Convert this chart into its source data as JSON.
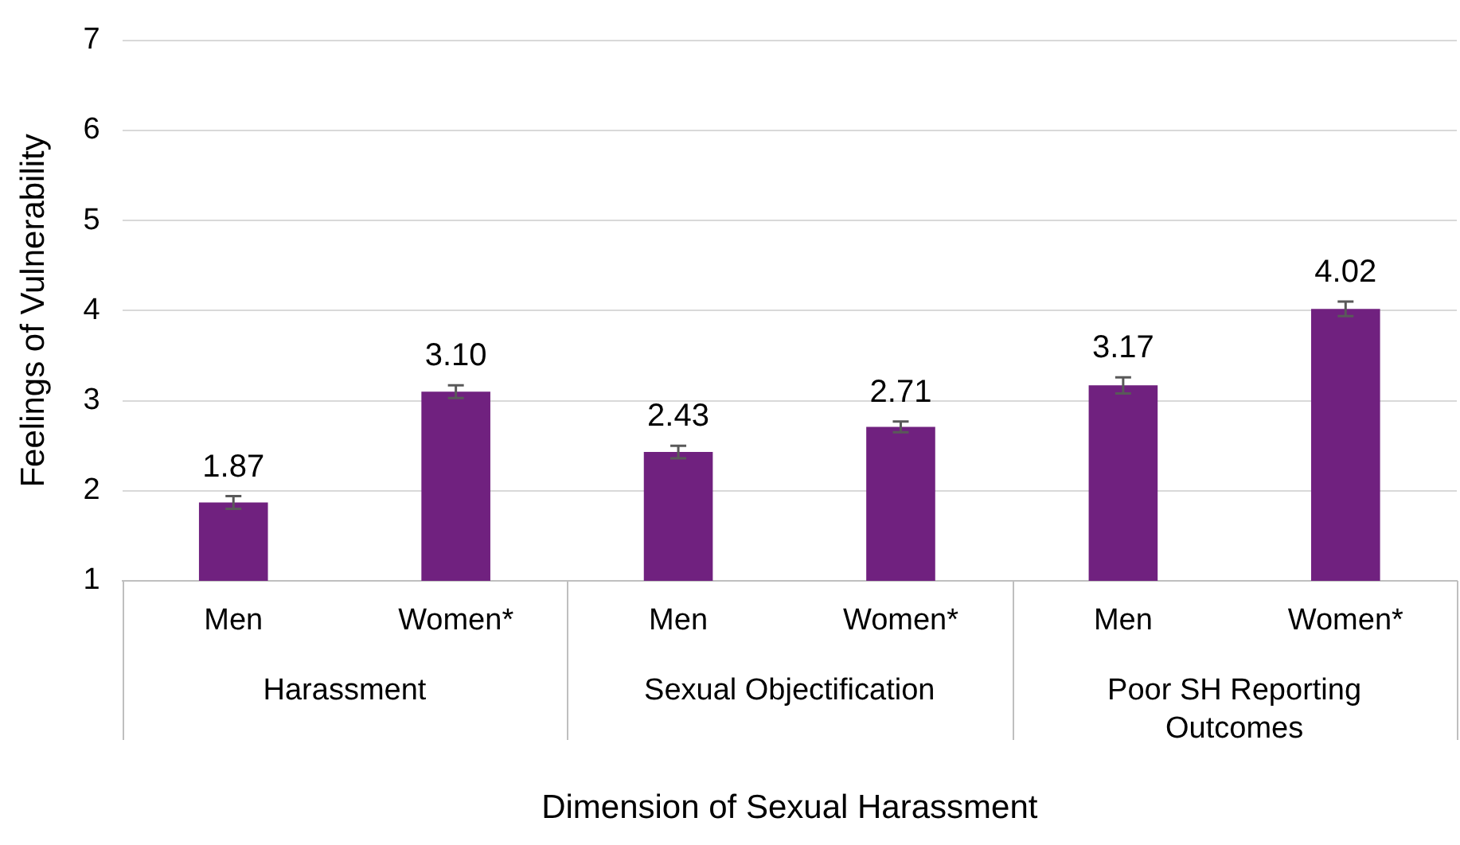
{
  "chart_data": {
    "type": "bar",
    "xlabel": "Dimension of Sexual Harassment",
    "ylabel": "Feelings of Vulnerability",
    "categories": [
      "Men",
      "Women*",
      "Men",
      "Women*",
      "Men",
      "Women*"
    ],
    "values": [
      1.87,
      3.1,
      2.43,
      2.71,
      3.17,
      4.02
    ],
    "errors": [
      0.07,
      0.07,
      0.07,
      0.06,
      0.09,
      0.08
    ],
    "color": "#70217f",
    "value_labels": [
      "1.87",
      "3.10",
      "2.43",
      "2.71",
      "3.17",
      "4.02"
    ],
    "ylim": [
      1,
      7
    ],
    "yticks": [
      1,
      2,
      3,
      4,
      5,
      6,
      7
    ],
    "grid": "y",
    "legend": false,
    "annotations": [
      "Harassment",
      "Sexual Objectification",
      "Poor SH Reporting Outcomes"
    ]
  }
}
